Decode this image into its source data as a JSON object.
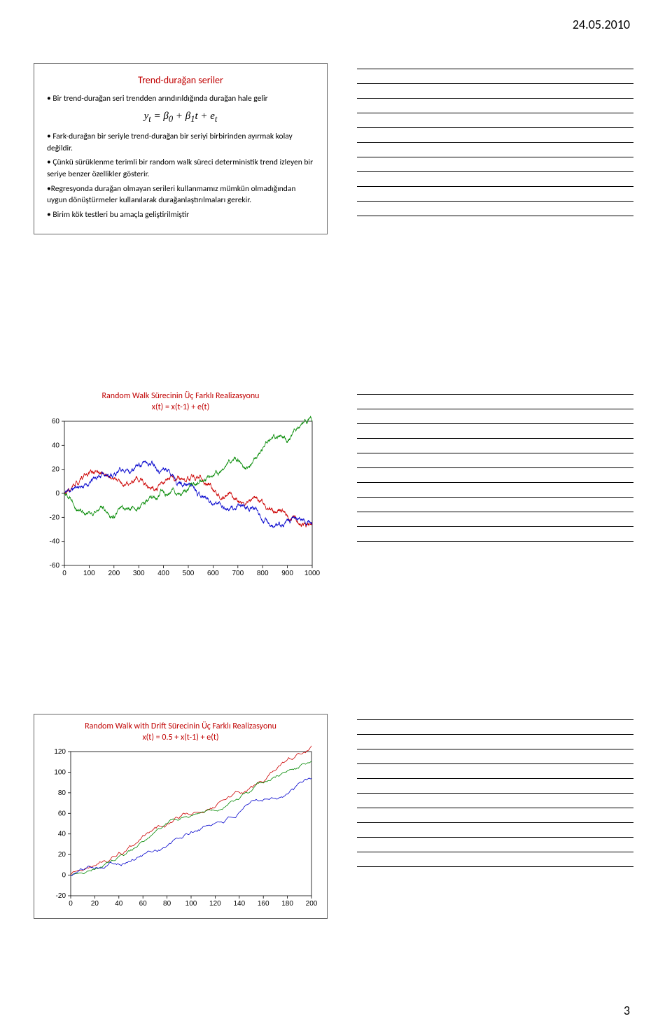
{
  "page": {
    "date": "24.05.2010",
    "number": "3"
  },
  "slide1": {
    "title": "Trend-durağan seriler",
    "title_color": "#c00000",
    "b1": "• Bir trend-durağan seri trendden arındırıldığında durağan hale gelir",
    "eq": "yₜ = β₀ + β₁t + eₜ",
    "b2": "• Fark-durağan bir seriyle trend-durağan bir seriyi birbirinden ayırmak kolay değildir.",
    "b3": "• Çünkü sürüklenme terimli bir random walk süreci deterministik trend izleyen bir seriye benzer özellikler gösterir.",
    "b4": "•Regresyonda durağan olmayan serileri kullanmamız mümkün olmadığından uygun dönüştürmeler kullanılarak durağanlaştırılmaları gerekir.",
    "b5": "• Birim kök testleri bu amaçla geliştirilmiştir"
  },
  "chart1": {
    "title1": "Random Walk Sürecinin Üç Farklı Realizasyonu",
    "title2": "x(t) = x(t-1) + e(t)",
    "title_color": "#c00000",
    "xlim": [
      0,
      1000
    ],
    "xtick_step": 100,
    "ylim": [
      -60,
      60
    ],
    "ytick_step": 20,
    "yticks": [
      "-60",
      "-40",
      "-20",
      "0",
      "20",
      "40",
      "60"
    ],
    "background": "#ffffff",
    "box_color": "#000000",
    "colors": {
      "s1": "#0000cc",
      "s2": "#008800",
      "s3": "#cc0000"
    }
  },
  "chart2": {
    "title1": "Random Walk with Drift Sürecinin Üç Farklı Realizasyonu",
    "title2": "x(t) = 0.5 + x(t-1) + e(t)",
    "title_color": "#c00000",
    "xlim": [
      0,
      200
    ],
    "xtick_step": 20,
    "ylim": [
      -20,
      120
    ],
    "ytick_step": 20,
    "yticks": [
      "-20",
      "0",
      "20",
      "40",
      "60",
      "80",
      "100",
      "120"
    ],
    "xticks": [
      "0",
      "20",
      "40",
      "60",
      "80",
      "100",
      "120",
      "140",
      "160",
      "180",
      "200"
    ],
    "background": "#ffffff",
    "box_color": "#000000",
    "colors": {
      "s1": "#0000cc",
      "s2": "#008800",
      "s3": "#cc0000"
    }
  }
}
